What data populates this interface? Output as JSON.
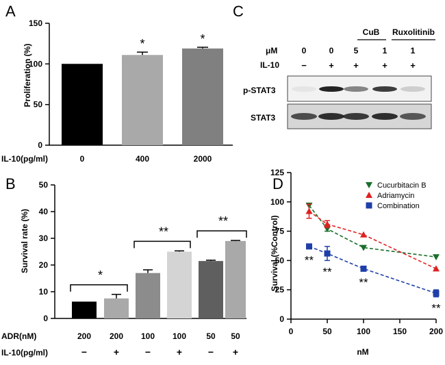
{
  "colors": {
    "black": "#000000",
    "bar_gray": "#a9a9a9",
    "bar_dark_gray": "#808080",
    "bar_med": "#8c8c8c",
    "bar_light": "#d4d4d4",
    "bar_slate": "#5f5f5f",
    "green": "#1a6e2a",
    "red": "#e02020",
    "blue": "#1f3fa8"
  },
  "panel_a": {
    "letter": "A",
    "chart_data": {
      "type": "bar",
      "ylabel": "Proliferation (%)",
      "xlabel": "IL-10(pg/ml)",
      "categories": [
        "0",
        "400",
        "2000"
      ],
      "values": [
        100,
        111,
        119
      ],
      "errors": [
        0,
        3.5,
        1.5
      ],
      "significance": [
        "",
        "*",
        "*"
      ],
      "ylim": [
        0,
        150
      ],
      "yticks": [
        "0",
        "50",
        "100",
        "150"
      ]
    }
  },
  "panel_b": {
    "letter": "B",
    "chart_data": {
      "type": "bar",
      "ylabel": "Survival rate (%)",
      "ylim": [
        0,
        50
      ],
      "yticks": [
        "0",
        "10",
        "20",
        "30",
        "40",
        "50"
      ],
      "row_labels": [
        "ADR(nM)",
        "IL-10(pg/ml)"
      ],
      "adr": [
        "200",
        "200",
        "100",
        "100",
        "50",
        "50"
      ],
      "il10": [
        "−",
        "+",
        "−",
        "+",
        "−",
        "+"
      ],
      "values": [
        6.3,
        7.5,
        17,
        25,
        21.5,
        29
      ],
      "errors": [
        0,
        1.5,
        1.2,
        0.3,
        0.3,
        0.2
      ],
      "brackets": [
        {
          "from": 0,
          "to": 1,
          "label": "*"
        },
        {
          "from": 2,
          "to": 3,
          "label": "**"
        },
        {
          "from": 4,
          "to": 5,
          "label": "**"
        }
      ]
    }
  },
  "panel_c": {
    "letter": "C",
    "group_labels": [
      "CuB",
      "Ruxolitinib"
    ],
    "um_label": "μM",
    "il10_label": "IL-10",
    "um_values": [
      "0",
      "0",
      "5",
      "1",
      "1"
    ],
    "il10_values": [
      "−",
      "+",
      "+",
      "+",
      "+"
    ],
    "blot_labels": [
      "p-STAT3",
      "STAT3"
    ],
    "pstat3_intensity": [
      0.05,
      0.85,
      0.45,
      0.75,
      0.15
    ],
    "stat3_intensity": [
      0.7,
      0.85,
      0.8,
      0.85,
      0.65
    ]
  },
  "panel_d": {
    "letter": "D",
    "chart_data": {
      "type": "line",
      "ylabel": "Survival (%Control)",
      "xlabel": "nM",
      "xlim": [
        0,
        200
      ],
      "ylim": [
        0,
        125
      ],
      "xticks": [
        "0",
        "50",
        "100",
        "150",
        "200"
      ],
      "yticks": [
        "0",
        "25",
        "50",
        "75",
        "100",
        "125"
      ],
      "x": [
        25,
        50,
        100,
        200
      ],
      "series": [
        {
          "name": "Cucurbitacin B",
          "values": [
            97,
            77,
            61,
            53
          ],
          "errors": [
            0,
            2,
            0,
            0
          ]
        },
        {
          "name": "Adriamycin",
          "values": [
            92,
            81,
            72,
            43
          ],
          "errors": [
            6,
            3,
            0,
            0
          ]
        },
        {
          "name": "Combination",
          "values": [
            62,
            56,
            43,
            22
          ],
          "errors": [
            2,
            6,
            2,
            3
          ]
        }
      ],
      "annotations": [
        "**",
        "**",
        "**",
        "**"
      ]
    }
  }
}
